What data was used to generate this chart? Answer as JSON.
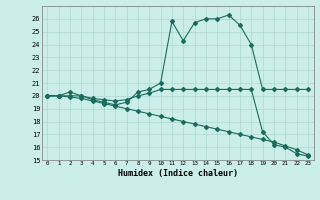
{
  "xlabel": "Humidex (Indice chaleur)",
  "background_color": "#cceee8",
  "grid_color": "#aad8d0",
  "line_color": "#1a6b5e",
  "xlim": [
    -0.5,
    23.5
  ],
  "ylim": [
    15,
    27
  ],
  "yticks": [
    15,
    16,
    17,
    18,
    19,
    20,
    21,
    22,
    23,
    24,
    25,
    26
  ],
  "xticks": [
    0,
    1,
    2,
    3,
    4,
    5,
    6,
    7,
    8,
    9,
    10,
    11,
    12,
    13,
    14,
    15,
    16,
    17,
    18,
    19,
    20,
    21,
    22,
    23
  ],
  "line1_x": [
    0,
    1,
    2,
    3,
    4,
    5,
    6,
    7,
    8,
    9,
    10,
    11,
    12,
    13,
    14,
    15,
    16,
    17,
    18,
    19,
    20,
    21,
    22,
    23
  ],
  "line1_y": [
    20.0,
    20.0,
    20.3,
    20.0,
    19.7,
    19.5,
    19.3,
    19.5,
    20.3,
    20.5,
    21.0,
    25.8,
    24.3,
    25.7,
    26.0,
    26.0,
    26.3,
    25.5,
    24.0,
    20.5,
    20.5,
    20.5,
    20.5,
    20.5
  ],
  "line2_x": [
    0,
    1,
    2,
    3,
    4,
    5,
    6,
    7,
    8,
    9,
    10,
    11,
    12,
    13,
    14,
    15,
    16,
    17,
    18,
    19,
    20,
    21,
    22,
    23
  ],
  "line2_y": [
    20.0,
    20.0,
    20.0,
    20.0,
    19.8,
    19.7,
    19.6,
    19.7,
    20.0,
    20.2,
    20.5,
    20.5,
    20.5,
    20.5,
    20.5,
    20.5,
    20.5,
    20.5,
    20.5,
    17.2,
    16.2,
    16.0,
    15.5,
    15.3
  ],
  "line3_x": [
    0,
    1,
    2,
    3,
    4,
    5,
    6,
    7,
    8,
    9,
    10,
    11,
    12,
    13,
    14,
    15,
    16,
    17,
    18,
    19,
    20,
    21,
    22,
    23
  ],
  "line3_y": [
    20.0,
    20.0,
    19.9,
    19.8,
    19.6,
    19.4,
    19.2,
    19.0,
    18.8,
    18.6,
    18.4,
    18.2,
    18.0,
    17.8,
    17.6,
    17.4,
    17.2,
    17.0,
    16.8,
    16.6,
    16.4,
    16.1,
    15.8,
    15.4
  ]
}
